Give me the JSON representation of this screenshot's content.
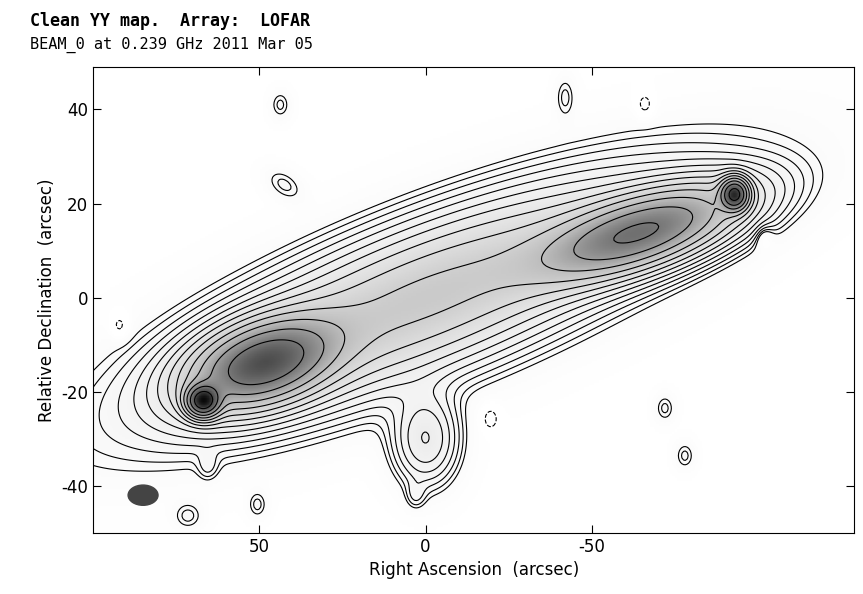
{
  "chart_data": {
    "type": "contour",
    "title": "Clean YY map.  Array:  LOFAR",
    "subtitle": "BEAM_0 at 0.239 GHz 2011 Mar 05",
    "x_label": "Right Ascension  (arcsec)",
    "y_label": "Relative Declination  (arcsec)",
    "xlim": [
      100,
      -129
    ],
    "ylim": [
      -50,
      49
    ],
    "xticks": [
      50,
      0,
      -50
    ],
    "yticks": [
      -40,
      -20,
      0,
      20,
      40
    ],
    "color": "black",
    "grid": false,
    "levels": [
      -0.01,
      0.01,
      0.0141,
      0.02,
      0.0283,
      0.04,
      0.0566,
      0.08,
      0.113,
      0.16,
      0.226,
      0.32,
      0.453,
      0.64,
      0.905
    ],
    "components": [
      {
        "x": 67,
        "y": -22,
        "peak": 1.0,
        "sx": 3,
        "sy": 2,
        "angle": 0
      },
      {
        "x": 49,
        "y": -14,
        "peak": 0.75,
        "sx": 13,
        "sy": 5,
        "angle": -11
      },
      {
        "x": -65,
        "y": 14,
        "peak": 0.6,
        "sx": 18,
        "sy": 4.5,
        "angle": -12
      },
      {
        "x": -93,
        "y": 22,
        "peak": 0.9,
        "sx": 2.5,
        "sy": 2,
        "angle": 0
      },
      {
        "x": 0,
        "y": 0,
        "peak": 0.25,
        "sx": 45,
        "sy": 9,
        "angle": -15
      },
      {
        "x": 0,
        "y": -30,
        "peak": 0.08,
        "sx": 6,
        "sy": 6,
        "angle": 0
      },
      {
        "x": 43.7,
        "y": 41,
        "peak": 0.016,
        "sx": 2,
        "sy": 2,
        "angle": 0
      },
      {
        "x": -42,
        "y": 42.6,
        "peak": 0.016,
        "sx": 2,
        "sy": 3,
        "angle": 0
      },
      {
        "x": 42.5,
        "y": 24,
        "peak": 0.016,
        "sx": 4,
        "sy": 2,
        "angle": 20
      },
      {
        "x": -72,
        "y": -23.5,
        "peak": 0.016,
        "sx": 2,
        "sy": 2,
        "angle": 0
      },
      {
        "x": -78,
        "y": -33.6,
        "peak": 0.016,
        "sx": 2,
        "sy": 2,
        "angle": 0
      },
      {
        "x": 3,
        "y": -42,
        "peak": 0.016,
        "sx": 2,
        "sy": 2,
        "angle": 0
      },
      {
        "x": 65.5,
        "y": -35.7,
        "peak": 0.016,
        "sx": 2,
        "sy": 2,
        "angle": 0
      },
      {
        "x": 71.5,
        "y": -46.4,
        "peak": 0.016,
        "sx": 3,
        "sy": 2,
        "angle": 0
      },
      {
        "x": 50.6,
        "y": -44,
        "peak": 0.016,
        "sx": 2,
        "sy": 2,
        "angle": 0
      },
      {
        "x": 92,
        "y": -6,
        "peak": -0.016,
        "sx": 2,
        "sy": 2,
        "angle": 0
      },
      {
        "x": -66,
        "y": 41,
        "peak": -0.016,
        "sx": 2,
        "sy": 2,
        "angle": 0
      },
      {
        "x": -19.5,
        "y": -25.7,
        "peak": -0.016,
        "sx": 2,
        "sy": 2,
        "angle": 0
      },
      {
        "x": -101.6,
        "y": 13.3,
        "peak": -0.016,
        "sx": 2,
        "sy": 2,
        "angle": 0
      }
    ],
    "beam": {
      "x": 85,
      "y": -42,
      "width": 9,
      "height": 4.3
    }
  }
}
